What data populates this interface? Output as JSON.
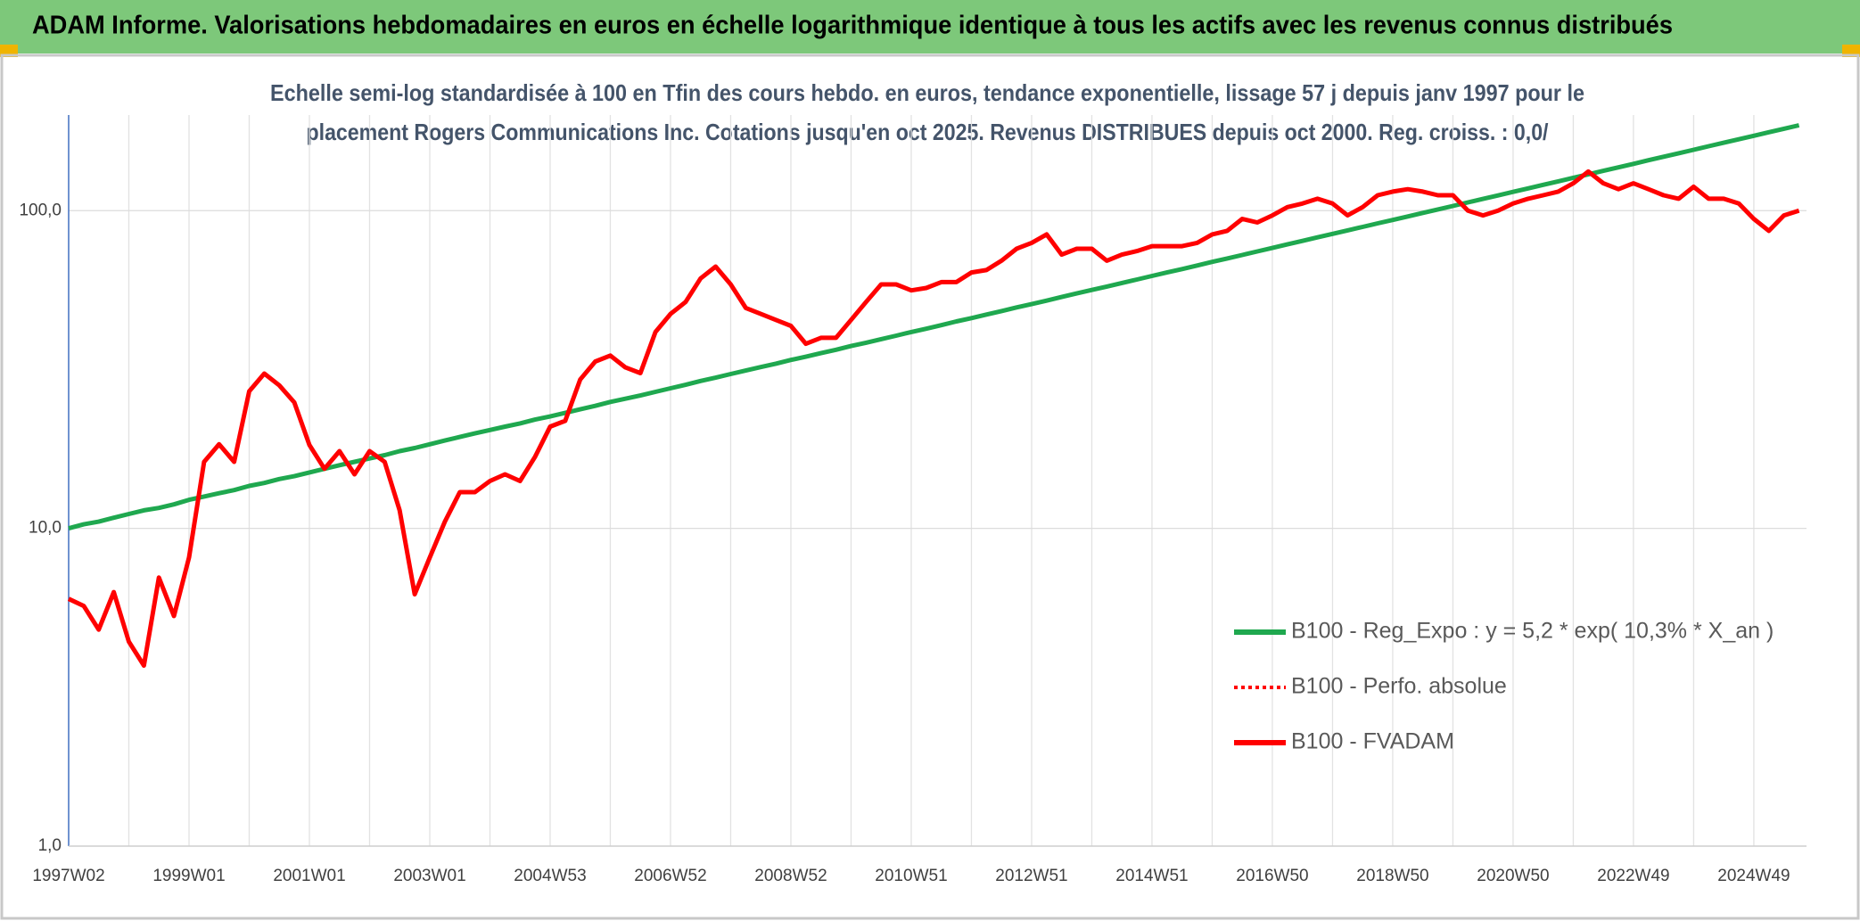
{
  "chart_data": {
    "type": "line",
    "title": "ADAM Informe. Valorisations hebdomadaires en euros en échelle logarithmique identique à tous les actifs avec les revenus connus distribués",
    "subtitle": [
      "Echelle semi-log standardisée à 100 en Tfin des cours hebdo. en euros, tendance exponentielle, lissage 57 j depuis janv 1997 pour le",
      "placement Rogers Communications Inc. Cotations jusqu'en oct 2025. Revenus DISTRIBUES depuis oct 2000. Reg. croiss. : 0,0/"
    ],
    "log_scale": true,
    "grid": true,
    "legend": "right",
    "ylim": [
      1,
      200
    ],
    "yticks": [
      {
        "value": 1,
        "label": "1,0"
      },
      {
        "value": 10,
        "label": "10,0"
      },
      {
        "value": 100,
        "label": "100,0"
      }
    ],
    "categories": [
      "1997W02",
      null,
      null,
      null,
      null,
      null,
      null,
      null,
      "1999W01",
      null,
      null,
      null,
      null,
      null,
      null,
      null,
      "2001W01",
      null,
      null,
      null,
      null,
      null,
      null,
      null,
      "2003W01",
      null,
      null,
      null,
      null,
      null,
      null,
      null,
      "2004W53",
      null,
      null,
      null,
      null,
      null,
      null,
      null,
      "2006W52",
      null,
      null,
      null,
      null,
      null,
      null,
      null,
      "2008W52",
      null,
      null,
      null,
      null,
      null,
      null,
      null,
      "2010W51",
      null,
      null,
      null,
      null,
      null,
      null,
      null,
      "2012W51",
      null,
      null,
      null,
      null,
      null,
      null,
      null,
      "2014W51",
      null,
      null,
      null,
      null,
      null,
      null,
      null,
      "2016W50",
      null,
      null,
      null,
      null,
      null,
      null,
      null,
      "2018W50",
      null,
      null,
      null,
      null,
      null,
      null,
      null,
      "2020W50",
      null,
      null,
      null,
      null,
      null,
      null,
      null,
      "2022W49",
      null,
      null,
      null,
      null,
      null,
      null,
      null,
      "2024W49",
      null,
      null,
      null
    ],
    "series": [
      {
        "name": "B100 - Reg_Expo : y = 5,2 * exp( 10,3% *  X_an )",
        "color": "#1fa84f",
        "style": "solid",
        "values": [
          10.0,
          10.3,
          10.5,
          10.8,
          11.1,
          11.4,
          11.6,
          11.9,
          12.3,
          12.6,
          12.9,
          13.2,
          13.6,
          13.9,
          14.3,
          14.6,
          15.0,
          15.4,
          15.8,
          16.2,
          16.6,
          17.0,
          17.5,
          17.9,
          18.4,
          18.9,
          19.4,
          19.9,
          20.4,
          20.9,
          21.4,
          22.0,
          22.5,
          23.1,
          23.7,
          24.3,
          25.0,
          25.6,
          26.2,
          26.9,
          27.6,
          28.3,
          29.1,
          29.8,
          30.6,
          31.4,
          32.2,
          33.0,
          33.9,
          34.7,
          35.6,
          36.5,
          37.5,
          38.4,
          39.4,
          40.4,
          41.5,
          42.5,
          43.6,
          44.8,
          45.9,
          47.1,
          48.3,
          49.6,
          50.8,
          52.1,
          53.5,
          54.9,
          56.3,
          57.7,
          59.2,
          60.7,
          62.3,
          63.9,
          65.5,
          67.2,
          69.0,
          70.7,
          72.5,
          74.4,
          76.3,
          78.3,
          80.3,
          82.4,
          84.5,
          86.7,
          88.9,
          91.2,
          93.5,
          95.9,
          98.4,
          100.9,
          103.5,
          106.2,
          108.9,
          111.7,
          114.6,
          117.5,
          120.6,
          123.7,
          126.9,
          130.1,
          133.5,
          136.9,
          140.4,
          144.1,
          147.8,
          151.6,
          155.5,
          159.5,
          163.6,
          167.8,
          172.1,
          176.5,
          181.1,
          185.7
        ]
      },
      {
        "name": "B100 - Perfo. absolue",
        "color": "#ff0000",
        "style": "dotted",
        "values": [
          6.0,
          5.7,
          4.8,
          6.3,
          4.4,
          3.7,
          7.0,
          5.3,
          8.1,
          16.2,
          18.4,
          16.2,
          27,
          30.7,
          28.2,
          24.9,
          18.3,
          15.4,
          17.5,
          14.8,
          17.5,
          16.2,
          11.4,
          6.2,
          8.1,
          10.5,
          13.0,
          13.0,
          14.1,
          14.8,
          14.1,
          16.8,
          20.9,
          21.8,
          29.4,
          33.5,
          35.0,
          32.1,
          30.8,
          41.5,
          47.3,
          51.6,
          61.2,
          66.7,
          58.6,
          49.4,
          47.3,
          45.3,
          43.4,
          38.1,
          39.8,
          39.8,
          45.3,
          51.6,
          58.6,
          58.6,
          56.1,
          57.1,
          59.6,
          59.6,
          63.9,
          65.0,
          69.6,
          75.9,
          79.2,
          84.2,
          72.7,
          75.9,
          75.9,
          69.6,
          72.7,
          74.6,
          77.3,
          77.3,
          77.3,
          79.2,
          84.2,
          86.4,
          94.2,
          91.8,
          96.6,
          102.6,
          105.3,
          109.0,
          105.3,
          96.6,
          102.6,
          111.8,
          114.8,
          116.8,
          114.8,
          111.8,
          111.8,
          100,
          96.6,
          100,
          105.3,
          109.0,
          111.8,
          114.8,
          121.9,
          132.8,
          121.9,
          116.8,
          121.9,
          116.8,
          111.8,
          109.0,
          118.9,
          109.0,
          109.0,
          105.3,
          94.2,
          86.4,
          96.6,
          100
        ]
      },
      {
        "name": "B100 - FVADAM",
        "color": "#ff0000",
        "style": "solid",
        "values": [
          6.0,
          5.7,
          4.8,
          6.3,
          4.4,
          3.7,
          7.0,
          5.3,
          8.1,
          16.2,
          18.4,
          16.2,
          27,
          30.7,
          28.2,
          24.9,
          18.3,
          15.4,
          17.5,
          14.8,
          17.5,
          16.2,
          11.4,
          6.2,
          8.1,
          10.5,
          13.0,
          13.0,
          14.1,
          14.8,
          14.1,
          16.8,
          20.9,
          21.8,
          29.4,
          33.5,
          35.0,
          32.1,
          30.8,
          41.5,
          47.3,
          51.6,
          61.2,
          66.7,
          58.6,
          49.4,
          47.3,
          45.3,
          43.4,
          38.1,
          39.8,
          39.8,
          45.3,
          51.6,
          58.6,
          58.6,
          56.1,
          57.1,
          59.6,
          59.6,
          63.9,
          65.0,
          69.6,
          75.9,
          79.2,
          84.2,
          72.7,
          75.9,
          75.9,
          69.6,
          72.7,
          74.6,
          77.3,
          77.3,
          77.3,
          79.2,
          84.2,
          86.4,
          94.2,
          91.8,
          96.6,
          102.6,
          105.3,
          109.0,
          105.3,
          96.6,
          102.6,
          111.8,
          114.8,
          116.8,
          114.8,
          111.8,
          111.8,
          100,
          96.6,
          100,
          105.3,
          109.0,
          111.8,
          114.8,
          121.9,
          132.8,
          121.9,
          116.8,
          121.9,
          116.8,
          111.8,
          109.0,
          118.9,
          109.0,
          109.0,
          105.3,
          94.2,
          86.4,
          96.6,
          100
        ]
      }
    ]
  }
}
